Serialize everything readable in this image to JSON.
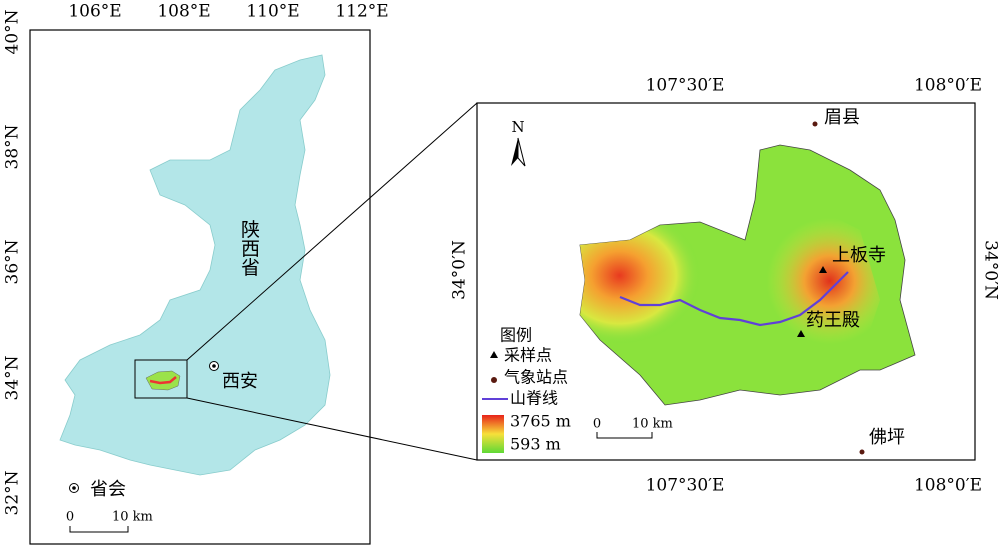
{
  "left_map": {
    "lon_ticks": [
      "106°E",
      "108°E",
      "110°E",
      "112°E"
    ],
    "lat_ticks": [
      "40°N",
      "38°N",
      "36°N",
      "34°N",
      "32°N"
    ],
    "province_label": "陕西省",
    "capital_label": "西安",
    "legend_capital": "省会",
    "scale": {
      "start": "0",
      "end": "10 km"
    }
  },
  "inset_map": {
    "lon_ticks": [
      "107°30′E",
      "108°0′E"
    ],
    "lat_tick": "34°0′N",
    "north": "N",
    "places": [
      "眉县",
      "上板寺",
      "药王殿",
      "佛坪"
    ],
    "legend": {
      "title": "图例",
      "sample": "采样点",
      "station": "气象站点",
      "ridge": "山脊线",
      "elev_max": "3765 m",
      "elev_min": "593 m"
    },
    "scale": {
      "start": "0",
      "end": "10 km"
    }
  }
}
